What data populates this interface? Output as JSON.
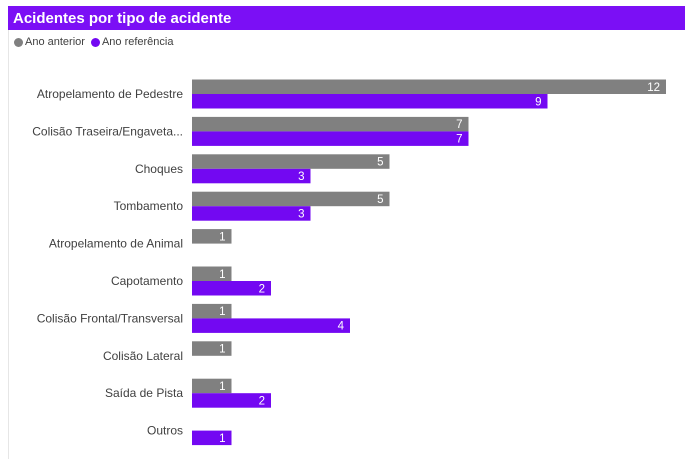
{
  "title": "Acidentes por tipo de acidente",
  "colors": {
    "header_bg": "#7b0ff5",
    "series_prev": "#808080",
    "series_ref": "#7308f2"
  },
  "chart_data": {
    "type": "bar",
    "orientation": "horizontal",
    "title": "Acidentes por tipo de acidente",
    "legend_position": "top-left",
    "categories": [
      "Atropelamento de Pedestre",
      "Colisão Traseira/Engaveta...",
      "Choques",
      "Tombamento",
      "Atropelamento de Animal",
      "Capotamento",
      "Colisão Frontal/Transversal",
      "Colisão Lateral",
      "Saída de Pista",
      "Outros"
    ],
    "series": [
      {
        "name": "Ano anterior",
        "values": [
          12,
          7,
          5,
          5,
          1,
          1,
          1,
          1,
          1,
          null
        ]
      },
      {
        "name": "Ano referência",
        "values": [
          9,
          7,
          3,
          3,
          null,
          2,
          4,
          null,
          2,
          1
        ]
      }
    ],
    "xlim": [
      0,
      12
    ],
    "grid": false,
    "data_labels": true
  }
}
